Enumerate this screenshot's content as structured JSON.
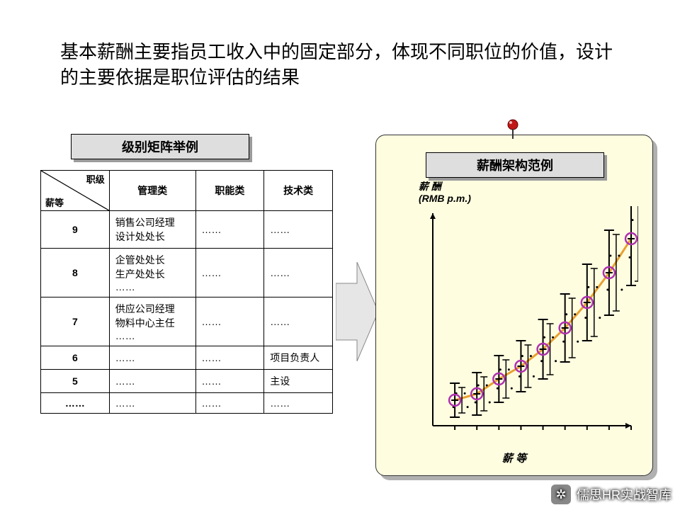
{
  "title": "基本薪酬主要指员工收入中的固定部分，体现不同职位的价值，设计的主要依据是职位评估的结果",
  "left": {
    "label": "级别矩阵举例",
    "corner": {
      "top": "职级",
      "bottom": "薪等"
    },
    "columns": [
      "管理类",
      "职能类",
      "技术类"
    ],
    "rows": [
      {
        "grade": "9",
        "mgmt": "销售公司经理\n设计处处长",
        "func": "……",
        "tech": "……"
      },
      {
        "grade": "8",
        "mgmt": "企管处处长\n生产处处长\n……",
        "func": "……",
        "tech": "……"
      },
      {
        "grade": "7",
        "mgmt": "供应公司经理\n物料中心主任\n……",
        "func": "……",
        "tech": "……"
      },
      {
        "grade": "6",
        "mgmt": "……",
        "func": "……",
        "tech": "项目负责人"
      },
      {
        "grade": "5",
        "mgmt": "……",
        "func": "……",
        "tech": "主设"
      },
      {
        "grade": "……",
        "mgmt": "……",
        "func": "……",
        "tech": "……"
      }
    ]
  },
  "right": {
    "label": "薪酬架构范例",
    "ylabel_line1": "薪 酬",
    "ylabel_line2": "(RMB p.m.)",
    "xlabel": "薪 等",
    "chart": {
      "type": "range-line",
      "xlim": [
        0,
        9
      ],
      "ylim": [
        0,
        100
      ],
      "xticks": [
        1,
        2,
        3,
        4,
        5,
        6,
        7,
        8,
        9
      ],
      "points": [
        {
          "x": 1,
          "mid": 12,
          "range": 8
        },
        {
          "x": 2,
          "mid": 15,
          "range": 10
        },
        {
          "x": 3,
          "mid": 22,
          "range": 11
        },
        {
          "x": 4,
          "mid": 28,
          "range": 12
        },
        {
          "x": 5,
          "mid": 36,
          "range": 14
        },
        {
          "x": 6,
          "mid": 46,
          "range": 16
        },
        {
          "x": 7,
          "mid": 58,
          "range": 18
        },
        {
          "x": 8,
          "mid": 72,
          "range": 20
        },
        {
          "x": 9,
          "mid": 88,
          "range": 22
        }
      ],
      "line_color": "#e8a030",
      "line_width": 3,
      "marker_stroke": "#b030b0",
      "marker_fill": "none",
      "marker_radius": 8,
      "bar_color": "#000000",
      "axis_color": "#000000",
      "dot_color": "#000000",
      "background_color": "#fefde0"
    }
  },
  "watermark": "儒思HR实战智库"
}
